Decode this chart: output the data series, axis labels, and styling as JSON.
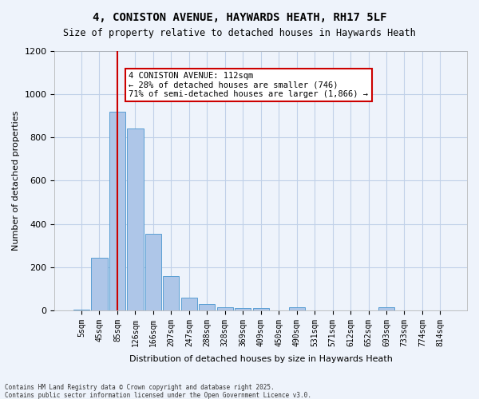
{
  "title_line1": "4, CONISTON AVENUE, HAYWARDS HEATH, RH17 5LF",
  "title_line2": "Size of property relative to detached houses in Haywards Heath",
  "xlabel": "Distribution of detached houses by size in Haywards Heath",
  "ylabel": "Number of detached properties",
  "categories": [
    "5sqm",
    "45sqm",
    "85sqm",
    "126sqm",
    "166sqm",
    "207sqm",
    "247sqm",
    "288sqm",
    "328sqm",
    "369sqm",
    "409sqm",
    "450sqm",
    "490sqm",
    "531sqm",
    "571sqm",
    "612sqm",
    "652sqm",
    "693sqm",
    "733sqm",
    "774sqm",
    "814sqm"
  ],
  "values": [
    5,
    245,
    920,
    840,
    355,
    160,
    60,
    30,
    15,
    10,
    10,
    0,
    15,
    0,
    0,
    0,
    0,
    15,
    0,
    0,
    0
  ],
  "bar_color": "#aec6e8",
  "bar_edge_color": "#5a9fd4",
  "grid_color": "#c0d0e8",
  "background_color": "#eef3fb",
  "vline_x": 2,
  "vline_color": "#cc0000",
  "annotation_text": "4 CONISTON AVENUE: 112sqm\n← 28% of detached houses are smaller (746)\n71% of semi-detached houses are larger (1,866) →",
  "annotation_box_color": "#cc0000",
  "ylim": [
    0,
    1200
  ],
  "yticks": [
    0,
    200,
    400,
    600,
    800,
    1000,
    1200
  ],
  "footer_line1": "Contains HM Land Registry data © Crown copyright and database right 2025.",
  "footer_line2": "Contains public sector information licensed under the Open Government Licence v3.0."
}
